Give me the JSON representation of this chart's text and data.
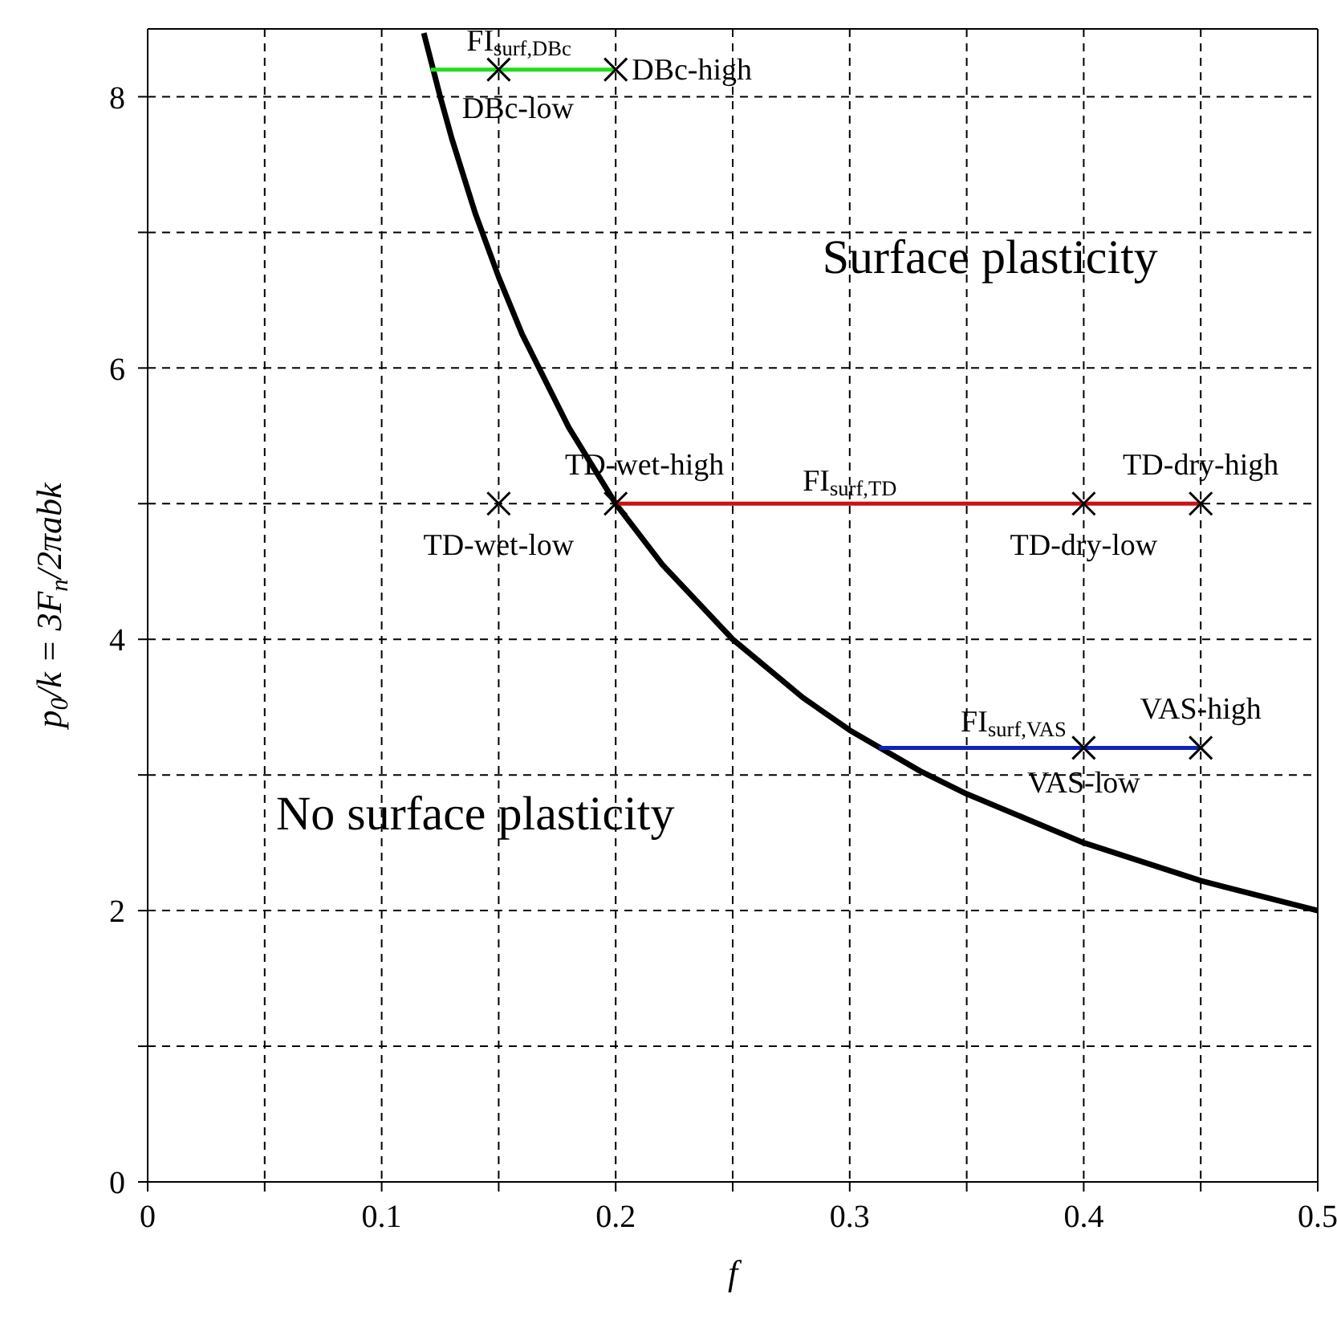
{
  "chart_data": {
    "type": "line",
    "xlabel": "f",
    "ylabel": "p$_{0}$/k = 3F$_{n}$/2πabk",
    "xlim": [
      0,
      0.5
    ],
    "ylim": [
      0,
      8.5
    ],
    "xticks": [
      0,
      {
        "value": 0.05,
        "label": null
      },
      0.1,
      {
        "value": 0.15,
        "label": null
      },
      0.2,
      {
        "value": 0.25,
        "label": null
      },
      0.3,
      {
        "value": 0.35,
        "label": null
      },
      0.4,
      {
        "value": 0.45,
        "label": null
      },
      0.5
    ],
    "yticks": [
      0,
      {
        "value": 1,
        "label": null
      },
      2,
      {
        "value": 3,
        "label": null
      },
      4,
      {
        "value": 5,
        "label": null
      },
      6,
      {
        "value": 7,
        "label": null
      },
      8
    ],
    "grid": true,
    "line_style": "solid",
    "series": [
      {
        "color": "#000000",
        "x": [
          0.118,
          0.125,
          0.13,
          0.14,
          0.15,
          0.16,
          0.18,
          0.2,
          0.22,
          0.25,
          0.28,
          0.3,
          0.33,
          0.35,
          0.4,
          0.45,
          0.5
        ],
        "values": [
          8.47,
          8,
          7.69,
          7.14,
          6.67,
          6.25,
          5.56,
          5,
          4.55,
          4,
          3.57,
          3.33,
          3.03,
          2.86,
          2.5,
          2.22,
          2
        ]
      },
      {
        "color": "#22dd22",
        "x": [
          0.121,
          0.2
        ],
        "values": [
          8.2,
          8.2
        ]
      },
      {
        "color": "#cc1111",
        "x": [
          0.2,
          0.45
        ],
        "values": [
          5,
          5
        ]
      },
      {
        "color": "#1122bb",
        "x": [
          0.3125,
          0.45
        ],
        "values": [
          3.2,
          3.2
        ]
      },
      {
        "type": "scatter",
        "color": "#000000",
        "marker": "cross",
        "x": [
          0.15,
          0.2,
          0.15,
          0.2,
          0.4,
          0.45,
          0.4,
          0.45
        ],
        "values": [
          8.2,
          8.2,
          5,
          5,
          5,
          5,
          3.2,
          3.2
        ]
      }
    ],
    "annotations": [
      {
        "text": "FI$_{surf,DBc}$",
        "x": 0.16,
        "y": 8.2
      },
      {
        "text": "DBc-low",
        "x": 0.15,
        "y": 8.2
      },
      {
        "text": "DBc-high",
        "x": 0.2,
        "y": 8.2
      },
      {
        "text": "TD-wet-low",
        "x": 0.15,
        "y": 5
      },
      {
        "text": "TD-wet-high",
        "x": 0.2,
        "y": 5
      },
      {
        "text": "FI$_{surf,TD}$",
        "x": 0.3,
        "y": 5
      },
      {
        "text": "TD-dry-low",
        "x": 0.4,
        "y": 5
      },
      {
        "text": "TD-dry-high",
        "x": 0.45,
        "y": 5
      },
      {
        "text": "FI$_{surf,VAS}$",
        "x": 0.37,
        "y": 3.2
      },
      {
        "text": "VAS-low",
        "x": 0.4,
        "y": 3.2
      },
      {
        "text": "VAS-high",
        "x": 0.45,
        "y": 3.2
      },
      "Surface plasticity",
      "No surface plasticity"
    ]
  }
}
